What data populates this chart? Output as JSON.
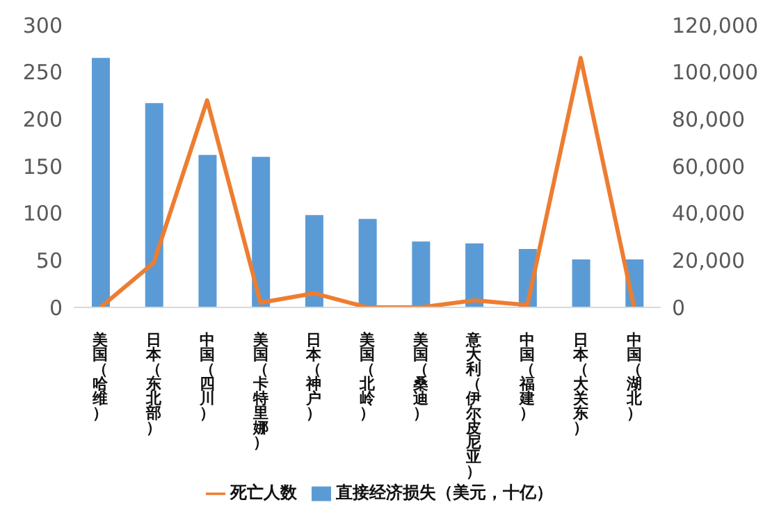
{
  "chart_data": {
    "type": "bar",
    "categories": [
      "美国（哈维）",
      "日本（东北部）",
      "中国（四川）",
      "美国（卡特里娜）",
      "日本（神户）",
      "美国（北岭）",
      "美国（桑迪）",
      "意大利（伊尔皮尼亚）",
      "中国（福建）",
      "日本（大关东）",
      "中国（湖北）"
    ],
    "series": [
      {
        "name": "直接经济损失（美元，十亿）",
        "color": "#5b9bd5",
        "values": [
          265,
          217,
          162,
          160,
          98,
          94,
          70,
          68,
          62,
          51,
          51
        ]
      },
      {
        "name": "死亡人数",
        "type": "line",
        "axis": "y2",
        "color": "#ed7d31",
        "values": [
          0,
          19000,
          88000,
          2000,
          6000,
          0,
          0,
          3000,
          1000,
          106000,
          0
        ]
      }
    ],
    "ylim": [
      0,
      300
    ],
    "yticks": [
      0,
      50,
      100,
      150,
      200,
      250,
      300
    ],
    "y2lim": [
      0,
      120000
    ],
    "y2ticks": [
      0,
      {
        "value": 20000,
        "label": "20,000"
      },
      {
        "value": 40000,
        "label": "40,000"
      },
      {
        "value": 60000,
        "label": "60,000"
      },
      {
        "value": 80000,
        "label": "80,000"
      },
      {
        "value": 100000,
        "label": "100,000"
      },
      {
        "value": 120000,
        "label": "120,000"
      }
    ],
    "grid": false,
    "legend": "bottom",
    "marker": "none"
  }
}
